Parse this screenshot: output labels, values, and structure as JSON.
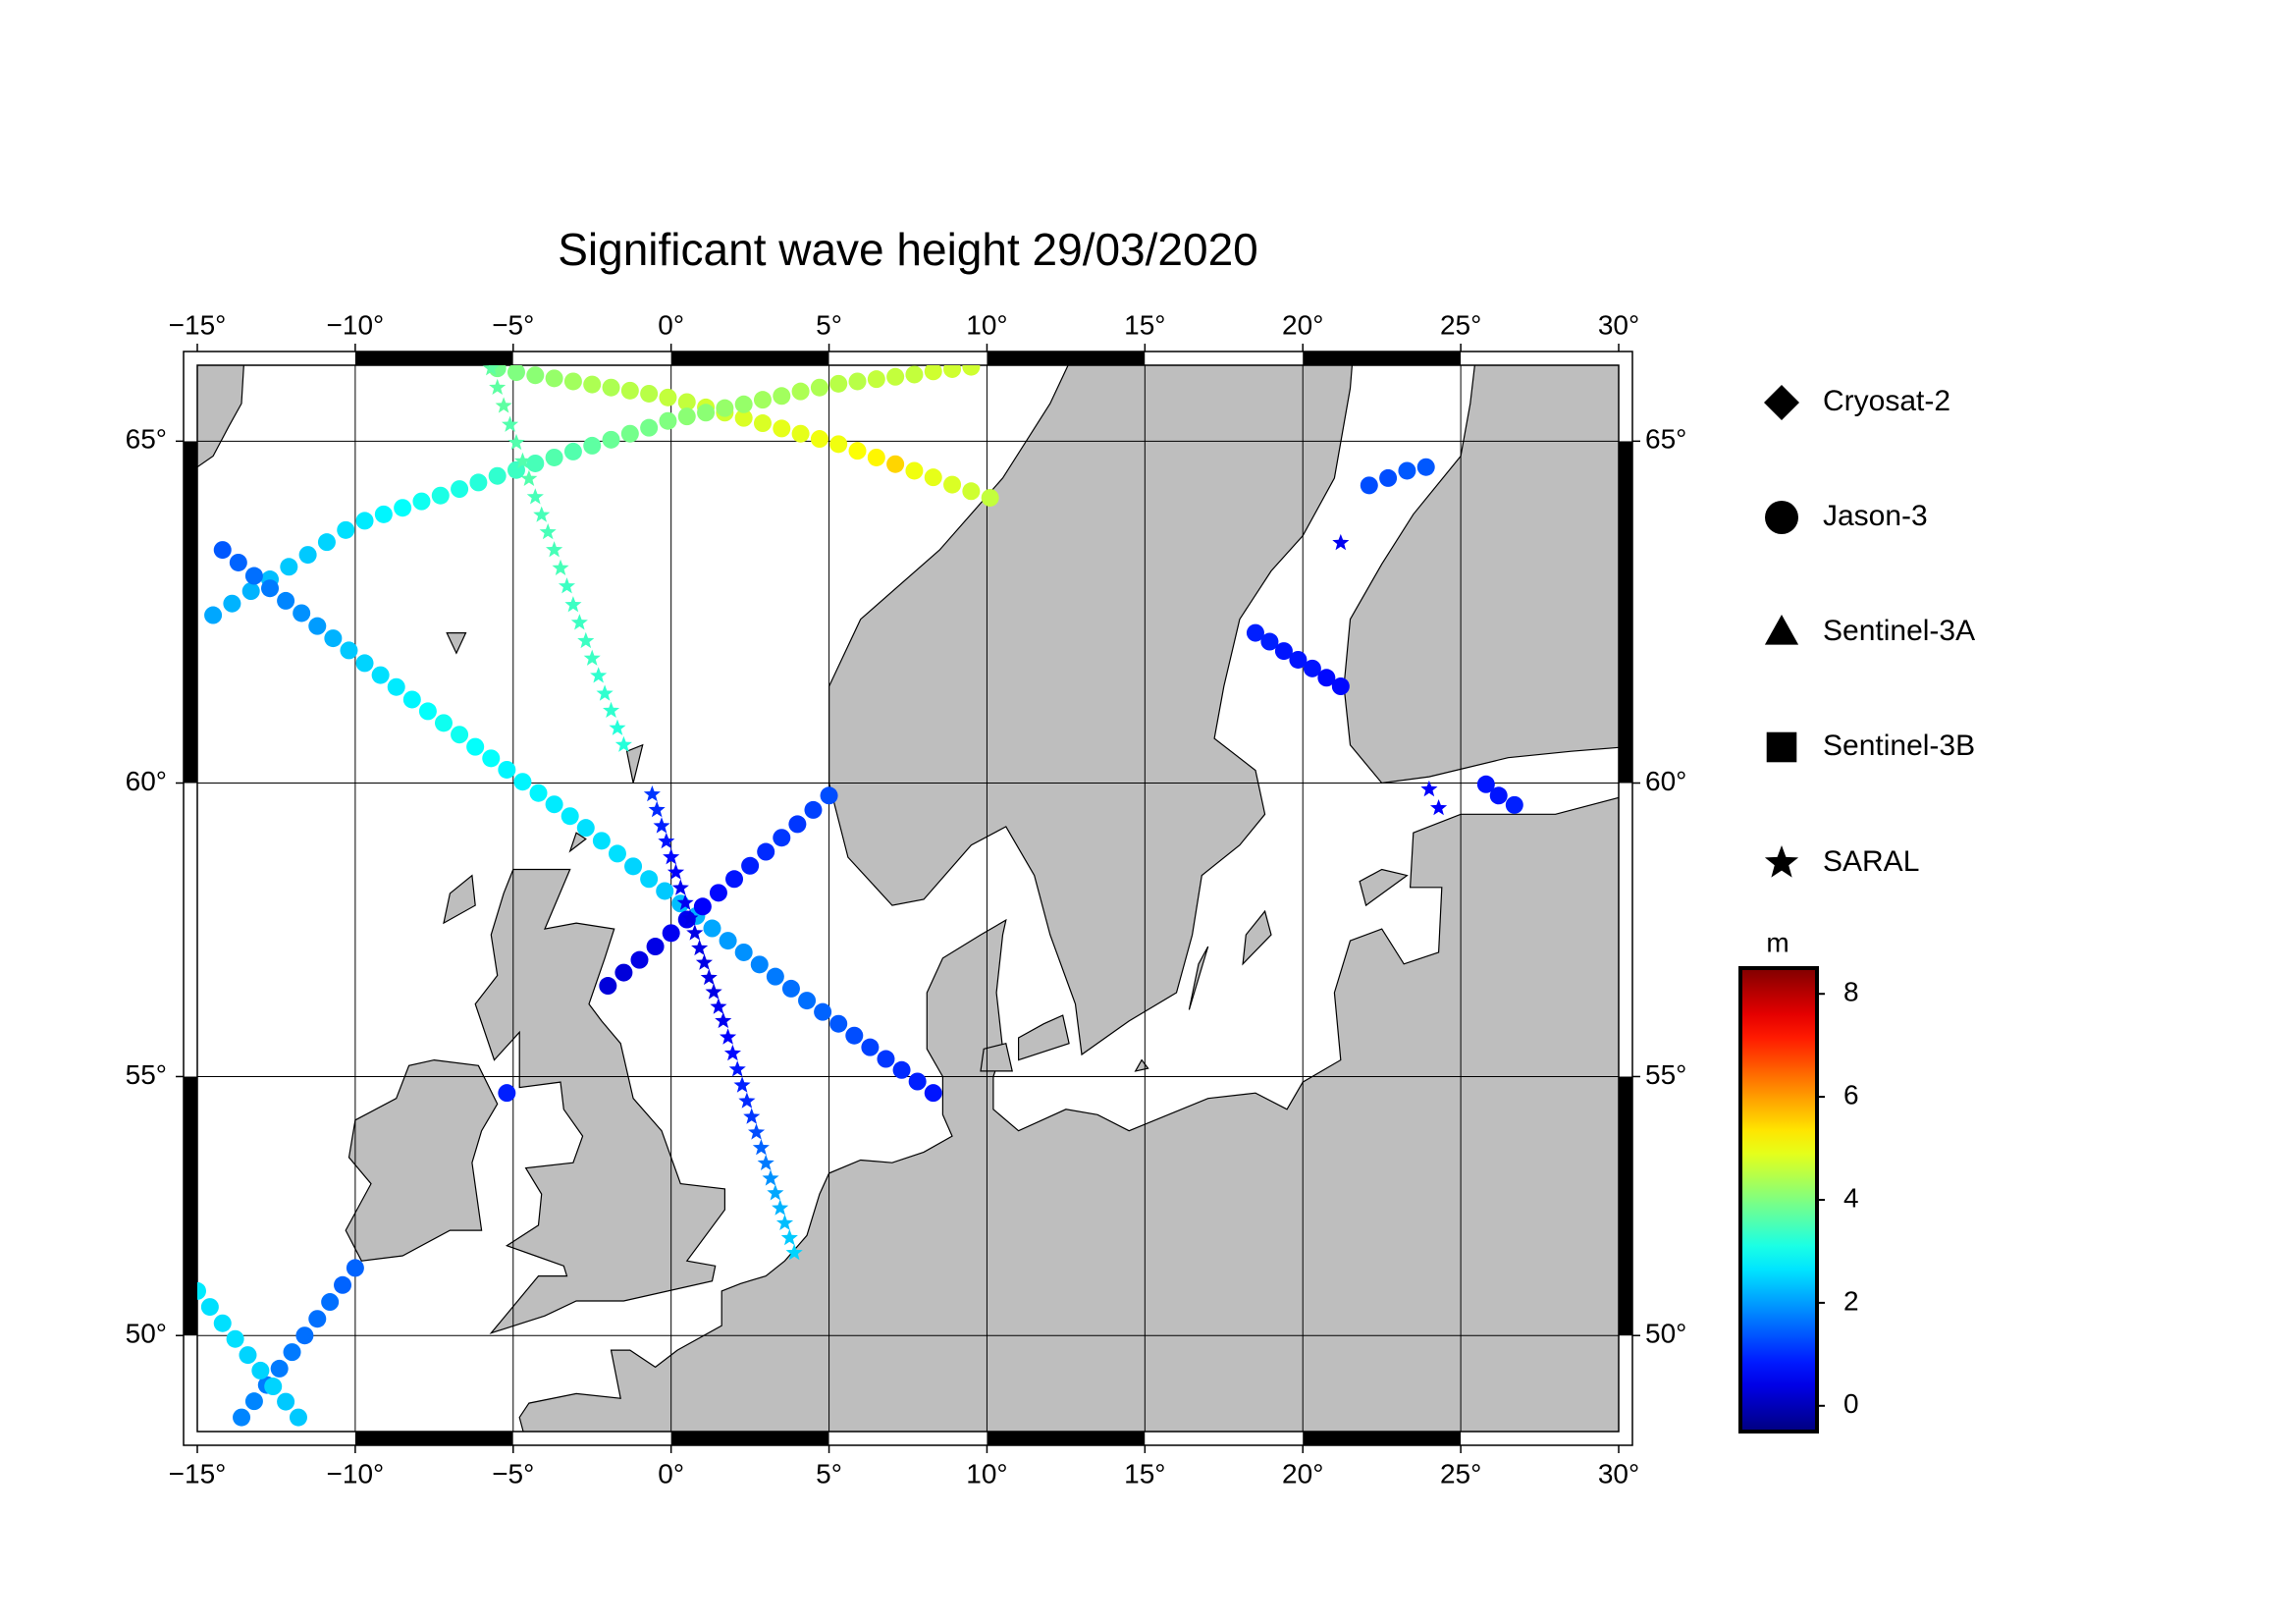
{
  "chart_data": {
    "type": "map",
    "title": "Significant wave height 29/03/2020",
    "projection": "mercator",
    "xlim": [
      -15,
      30
    ],
    "ylim": [
      48,
      66
    ],
    "xticks": [
      {
        "value": -15,
        "label": "−15°"
      },
      {
        "value": -10,
        "label": "−10°"
      },
      {
        "value": -5,
        "label": "−5°"
      },
      {
        "value": 0,
        "label": "0°"
      },
      {
        "value": 5,
        "label": "5°"
      },
      {
        "value": 10,
        "label": "10°"
      },
      {
        "value": 15,
        "label": "15°"
      },
      {
        "value": 20,
        "label": "20°"
      },
      {
        "value": 25,
        "label": "25°"
      },
      {
        "value": 30,
        "label": "30°"
      }
    ],
    "yticks": [
      {
        "value": 50,
        "label": "50°"
      },
      {
        "value": 55,
        "label": "55°"
      },
      {
        "value": 60,
        "label": "60°"
      },
      {
        "value": 65,
        "label": "65°"
      }
    ],
    "grid": true,
    "land_color": "#bebebe",
    "colormap": "jet",
    "clim": [
      -0.5,
      8.5
    ],
    "colorbar_label": "m",
    "colorbar_ticks": [
      0,
      2,
      4,
      6,
      8
    ],
    "legend": "right",
    "series": [
      {
        "name": "Cryosat-2",
        "marker": "diamond",
        "tracks": []
      },
      {
        "name": "Jason-3",
        "marker": "circle",
        "tracks": [
          {
            "x": [
              -5.5,
              -4.9,
              -4.3,
              -3.7,
              -3.1,
              -2.5,
              -1.9,
              -1.3,
              -0.7,
              -0.1,
              0.5,
              1.1,
              1.7,
              2.3,
              2.9,
              3.5,
              4.1,
              4.7,
              5.3,
              5.9,
              6.5,
              7.1,
              7.7,
              8.3,
              8.9,
              9.5,
              10.1
            ],
            "y": [
              65.96,
              65.91,
              65.87,
              65.83,
              65.79,
              65.75,
              65.71,
              65.67,
              65.63,
              65.58,
              65.52,
              65.45,
              65.38,
              65.31,
              65.24,
              65.17,
              65.1,
              65.03,
              64.96,
              64.87,
              64.78,
              64.69,
              64.6,
              64.51,
              64.41,
              64.32,
              64.23
            ],
            "values": [
              3.9,
              4.0,
              4.1,
              4.2,
              4.3,
              4.4,
              4.4,
              4.5,
              4.5,
              4.6,
              4.6,
              4.7,
              4.7,
              4.8,
              4.8,
              4.9,
              4.9,
              5.0,
              5.0,
              5.1,
              5.2,
              5.5,
              5.0,
              4.9,
              4.8,
              4.7,
              4.6
            ]
          },
          {
            "x": [
              -14.5,
              -13.9,
              -13.3,
              -12.7,
              -12.1,
              -11.5,
              -10.9,
              -10.3,
              -9.7,
              -9.1,
              -8.5,
              -7.9,
              -7.3,
              -6.7,
              -6.1,
              -5.5,
              -4.9,
              -4.3,
              -3.7,
              -3.1,
              -2.5,
              -1.9,
              -1.3,
              -0.7,
              -0.1,
              0.5,
              1.1,
              1.7,
              2.3,
              2.9,
              3.5,
              4.1,
              4.7,
              5.3,
              5.9,
              6.5,
              7.1,
              7.7,
              8.3,
              8.9,
              9.5
            ],
            "y": [
              62.56,
              62.73,
              62.91,
              63.08,
              63.26,
              63.43,
              63.61,
              63.78,
              63.91,
              64.0,
              64.09,
              64.18,
              64.26,
              64.35,
              64.44,
              64.53,
              64.61,
              64.7,
              64.78,
              64.86,
              64.94,
              65.02,
              65.1,
              65.18,
              65.27,
              65.33,
              65.38,
              65.44,
              65.49,
              65.55,
              65.6,
              65.66,
              65.71,
              65.76,
              65.79,
              65.82,
              65.85,
              65.88,
              65.92,
              65.95,
              65.98
            ],
            "values": [
              2.1,
              2.2,
              2.2,
              2.3,
              2.4,
              2.4,
              2.5,
              2.6,
              2.7,
              2.8,
              2.9,
              3.0,
              3.1,
              3.1,
              3.2,
              3.3,
              3.4,
              3.5,
              3.6,
              3.6,
              3.7,
              3.8,
              3.9,
              3.9,
              4.0,
              4.1,
              4.1,
              4.2,
              4.2,
              4.3,
              4.3,
              4.4,
              4.4,
              4.5,
              4.5,
              4.6,
              4.6,
              4.6,
              4.7,
              4.7,
              4.7
            ]
          },
          {
            "x": [
              -14.2,
              -13.7,
              -13.2,
              -12.7,
              -12.2,
              -11.7,
              -11.2,
              -10.7,
              -10.2,
              -9.7,
              -9.2,
              -8.7,
              -8.2,
              -7.7,
              -7.2,
              -6.7,
              -6.2,
              -5.7,
              -5.2,
              -4.7,
              -4.2,
              -3.7,
              -3.2,
              -2.7,
              -2.2,
              -1.7,
              -1.2,
              -0.7,
              -0.2,
              0.3,
              0.8,
              1.3,
              1.8,
              2.3,
              2.8,
              3.3,
              3.8,
              4.3,
              4.8,
              5.3,
              5.8,
              6.3,
              6.8,
              7.3,
              7.8,
              8.3
            ],
            "y": [
              63.5,
              63.32,
              63.13,
              62.95,
              62.77,
              62.59,
              62.4,
              62.22,
              62.04,
              61.85,
              61.67,
              61.49,
              61.3,
              61.12,
              60.94,
              60.76,
              60.57,
              60.39,
              60.21,
              60.02,
              59.84,
              59.66,
              59.47,
              59.28,
              59.07,
              58.86,
              58.65,
              58.44,
              58.24,
              58.03,
              57.82,
              57.61,
              57.4,
              57.2,
              56.99,
              56.78,
              56.57,
              56.36,
              56.16,
              55.95,
              55.74,
              55.53,
              55.32,
              55.12,
              54.91,
              54.7
            ],
            "values": [
              1.4,
              1.5,
              1.6,
              1.7,
              1.8,
              1.9,
              2.0,
              2.2,
              2.4,
              2.5,
              2.6,
              2.7,
              2.8,
              2.9,
              3.0,
              3.0,
              2.9,
              2.9,
              2.8,
              2.8,
              2.8,
              2.7,
              2.7,
              2.6,
              2.6,
              2.6,
              2.5,
              2.5,
              2.4,
              2.3,
              2.2,
              2.1,
              2.0,
              1.9,
              1.8,
              1.7,
              1.6,
              1.6,
              1.5,
              1.4,
              1.3,
              1.2,
              1.1,
              1.0,
              0.9,
              0.8
            ]
          },
          {
            "x": [
              -2.0,
              -1.5,
              -1.0,
              -0.5,
              0.0,
              0.5,
              1.0,
              1.5,
              2.0,
              2.5,
              3.0,
              3.5,
              4.0,
              4.5,
              5.0
            ],
            "y": [
              56.62,
              56.85,
              57.07,
              57.3,
              57.53,
              57.76,
              57.98,
              58.21,
              58.44,
              58.66,
              58.89,
              59.12,
              59.34,
              59.57,
              59.8
            ],
            "values": [
              0.3,
              0.3,
              0.4,
              0.4,
              0.5,
              0.5,
              0.6,
              0.7,
              0.8,
              0.9,
              1.0,
              1.1,
              1.1,
              1.2,
              1.3
            ]
          },
          {
            "x": [
              -10.0,
              -10.4,
              -10.8,
              -11.2,
              -11.6,
              -12.0,
              -12.4,
              -12.8,
              -13.2,
              -13.6
            ],
            "y": [
              51.36,
              51.02,
              50.68,
              50.34,
              50.0,
              49.66,
              49.32,
              48.98,
              48.64,
              48.3
            ],
            "values": [
              1.5,
              1.5,
              1.6,
              1.6,
              1.6,
              1.7,
              1.7,
              1.7,
              1.8,
              1.8
            ]
          },
          {
            "x": [
              -15.0,
              -14.6,
              -14.2,
              -13.8,
              -13.4,
              -13.0,
              -12.6,
              -12.2,
              -11.8
            ],
            "y": [
              50.9,
              50.58,
              50.25,
              49.93,
              49.6,
              49.28,
              48.95,
              48.63,
              48.3
            ],
            "values": [
              2.7,
              2.6,
              2.6,
              2.6,
              2.5,
              2.5,
              2.5,
              2.4,
              2.4
            ]
          },
          {
            "x": [
              -5.2
            ],
            "y": [
              54.7
            ],
            "values": [
              0.9
            ]
          },
          {
            "x": [
              18.5,
              18.95,
              19.4,
              19.85,
              20.3,
              20.75,
              21.2
            ],
            "y": [
              62.3,
              62.17,
              62.03,
              61.9,
              61.77,
              61.63,
              61.5
            ],
            "values": [
              0.9,
              0.9,
              0.8,
              0.8,
              0.8,
              0.7,
              0.7
            ]
          },
          {
            "x": [
              22.1,
              22.7,
              23.3,
              23.9
            ],
            "y": [
              64.4,
              64.5,
              64.6,
              64.65
            ],
            "values": [
              1.3,
              1.3,
              1.4,
              1.4
            ]
          },
          {
            "x": [
              25.8,
              26.2,
              26.7
            ],
            "y": [
              59.98,
              59.8,
              59.65
            ],
            "values": [
              0.8,
              0.8,
              0.9
            ]
          }
        ]
      },
      {
        "name": "Sentinel-3A",
        "marker": "triangle",
        "tracks": []
      },
      {
        "name": "Sentinel-3B",
        "marker": "square",
        "tracks": []
      },
      {
        "name": "SARAL",
        "marker": "star",
        "tracks": [
          {
            "x": [
              -5.7,
              -5.5,
              -5.3,
              -5.1,
              -4.9,
              -4.7,
              -4.5,
              -4.3,
              -4.1,
              -3.9,
              -3.7,
              -3.5,
              -3.3,
              -3.1,
              -2.9,
              -2.7,
              -2.5,
              -2.3,
              -2.1,
              -1.9,
              -1.7,
              -1.5
            ],
            "y": [
              65.96,
              65.71,
              65.47,
              65.22,
              64.98,
              64.73,
              64.49,
              64.24,
              63.99,
              63.75,
              63.5,
              63.24,
              62.98,
              62.71,
              62.45,
              62.18,
              61.92,
              61.66,
              61.39,
              61.13,
              60.86,
              60.6
            ],
            "values": [
              3.7,
              3.7,
              3.7,
              3.6,
              3.6,
              3.6,
              3.6,
              3.5,
              3.5,
              3.5,
              3.5,
              3.5,
              3.4,
              3.4,
              3.4,
              3.4,
              3.4,
              3.3,
              3.3,
              3.3,
              3.2,
              3.2
            ]
          },
          {
            "x": [
              -0.6,
              -0.45,
              -0.3,
              -0.15,
              0.0,
              0.15,
              0.3,
              0.45,
              0.6,
              0.75,
              0.9,
              1.05,
              1.2,
              1.35,
              1.5,
              1.65,
              1.8,
              1.95,
              2.1,
              2.25,
              2.4,
              2.55,
              2.7,
              2.85,
              3.0,
              3.15,
              3.3,
              3.45,
              3.6,
              3.75,
              3.9
            ],
            "y": [
              59.82,
              59.57,
              59.31,
              59.06,
              58.8,
              58.55,
              58.29,
              58.04,
              57.78,
              57.53,
              57.27,
              57.02,
              56.76,
              56.51,
              56.25,
              56.0,
              55.71,
              55.42,
              55.13,
              54.84,
              54.55,
              54.26,
              53.97,
              53.68,
              53.39,
              53.1,
              52.82,
              52.53,
              52.24,
              51.95,
              51.66
            ],
            "values": [
              1.1,
              1.0,
              0.9,
              0.8,
              0.7,
              0.6,
              0.5,
              0.5,
              0.4,
              0.4,
              0.4,
              0.4,
              0.4,
              0.4,
              0.5,
              0.5,
              0.6,
              0.7,
              0.8,
              0.9,
              1.0,
              1.1,
              1.3,
              1.5,
              1.7,
              1.9,
              2.1,
              2.2,
              2.3,
              2.4,
              2.5
            ]
          },
          {
            "x": [
              21.2
            ],
            "y": [
              63.6
            ],
            "values": [
              0.5
            ]
          },
          {
            "x": [
              24.0,
              24.3
            ],
            "y": [
              59.9,
              59.6
            ],
            "values": [
              0.6,
              0.6
            ]
          }
        ]
      }
    ]
  }
}
